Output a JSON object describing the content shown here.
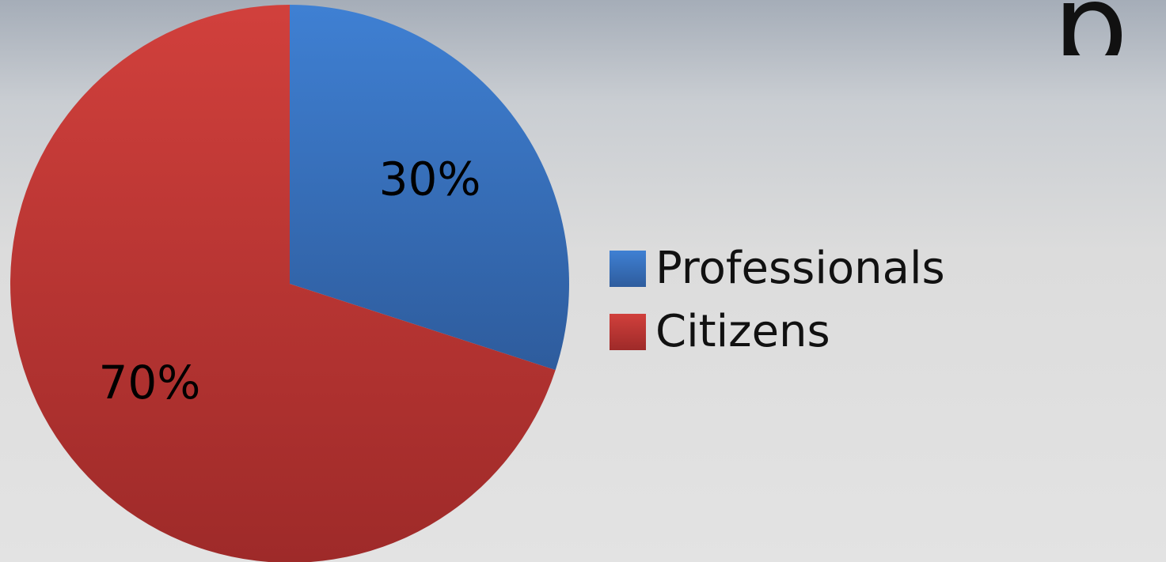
{
  "chart_data": {
    "type": "pie",
    "title_fragment": "p",
    "categories": [
      "Professionals",
      "Citizens"
    ],
    "values": [
      30,
      70
    ],
    "labels": [
      "30%",
      "70%"
    ],
    "colors": [
      "#3e78c6",
      "#c53a38"
    ],
    "legend_position": "right"
  }
}
